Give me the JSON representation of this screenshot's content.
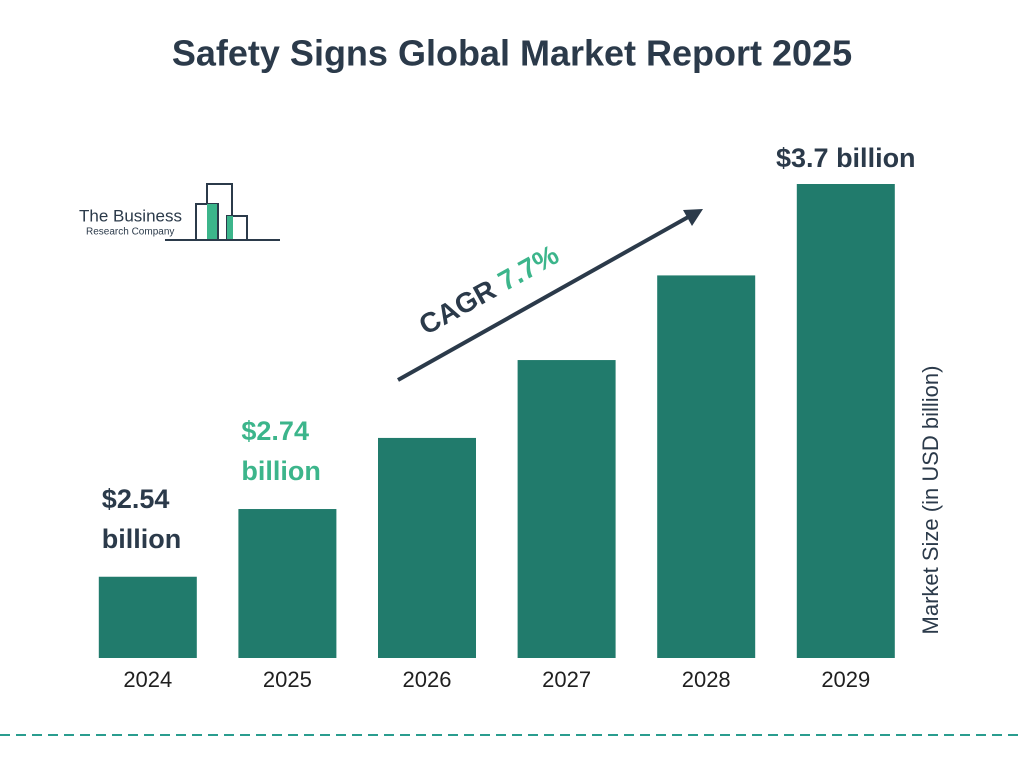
{
  "chart_data": {
    "type": "bar",
    "title": "Safety Signs Global Market Report 2025",
    "categories": [
      "2024",
      "2025",
      "2026",
      "2027",
      "2028",
      "2029"
    ],
    "values": [
      2.54,
      2.74,
      2.95,
      3.18,
      3.43,
      3.7
    ],
    "value_labels": [
      "$2.54 billion",
      "$2.74 billion",
      null,
      null,
      null,
      "$3.7 billion"
    ],
    "value_label_colors": [
      "#2b3a4a",
      "#3cb58b",
      null,
      null,
      null,
      "#2b3a4a"
    ],
    "color": "#217b6c",
    "ylim": [
      2.3,
      3.7
    ],
    "y_label": "Market Size (in USD billion)",
    "annotation": {
      "label": "CAGR",
      "value": "7.7%"
    },
    "logo": {
      "line1": "The Business",
      "line2": "Research Company"
    }
  }
}
